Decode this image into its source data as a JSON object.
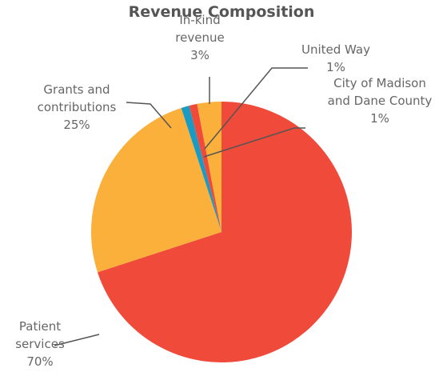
{
  "chart_data": {
    "type": "pie",
    "title": "Revenue Composition",
    "categories": [
      "Patient services",
      "Grants and contributions",
      "City of Madison and Dane County",
      "United Way",
      "In-kind revenue"
    ],
    "values": [
      70,
      25,
      1,
      1,
      3
    ],
    "value_labels": [
      "70%",
      "25%",
      "1%",
      "1%",
      "3%"
    ],
    "colors": [
      "#ef4a3a",
      "#fbb03b",
      "#1a9bc4",
      "#ef4a3a",
      "#fbb03b"
    ]
  }
}
